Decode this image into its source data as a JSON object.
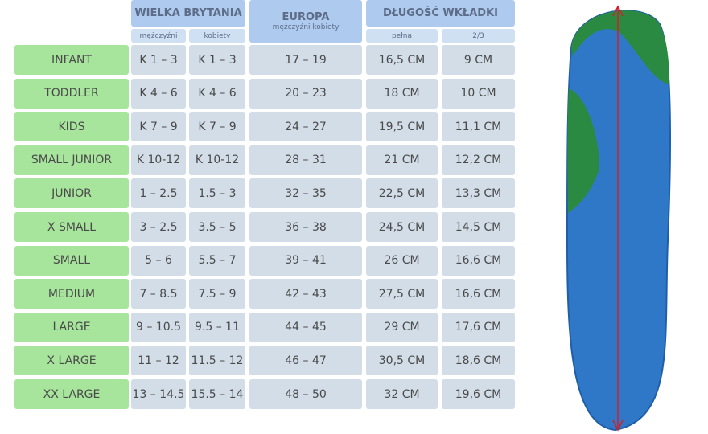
{
  "header": {
    "uk": "WIELKA BRYTANIA",
    "uk_men": "mężczyźni",
    "uk_women": "kobiety",
    "europe": "EUROPA",
    "europe_sub": "mężczyźni kobiety",
    "length": "DŁUGOŚĆ WKŁADKI",
    "full": "pełna",
    "two_thirds": "2/3"
  },
  "table": {
    "rows": [
      [
        "INFANT",
        "K 1 – 3",
        "K 1 – 3",
        "17 – 19",
        "16,5 CM",
        "9 CM"
      ],
      [
        "TODDLER",
        "K 4 – 6",
        "K 4 – 6",
        "20 – 23",
        "18 CM",
        "10 CM"
      ],
      [
        "KIDS",
        "K 7 – 9",
        "K 7 – 9",
        "24 – 27",
        "19,5 CM",
        "11,1 CM"
      ],
      [
        "SMALL JUNIOR",
        "K 10-12",
        "K 10-12",
        "28 – 31",
        "21 CM",
        "12,2 CM"
      ],
      [
        "JUNIOR",
        "1 – 2.5",
        "1.5 – 3",
        "32 – 35",
        "22,5 CM",
        "13,3 CM"
      ],
      [
        "X SMALL",
        "3 – 2.5",
        "3.5 – 5",
        "36 – 38",
        "24,5 CM",
        "14,5 CM"
      ],
      [
        "SMALL",
        "5 – 6",
        "5.5 – 7",
        "39 – 41",
        "26 CM",
        "16,6 CM"
      ],
      [
        "MEDIUM",
        "7 – 8.5",
        "7.5 – 9",
        "42 – 43",
        "27,5 CM",
        "16,6 CM"
      ],
      [
        "LARGE",
        "9 – 10.5",
        "9.5 – 11",
        "44 – 45",
        "29 CM",
        "17,6 CM"
      ],
      [
        "X LARGE",
        "11 – 12",
        "11.5 – 12",
        "46 – 47",
        "30,5 CM",
        "18,6 CM"
      ],
      [
        "XX LARGE",
        "13 – 14.5",
        "15.5 – 14",
        "48 – 50",
        "32 CM",
        "19,6 CM"
      ]
    ]
  }
}
